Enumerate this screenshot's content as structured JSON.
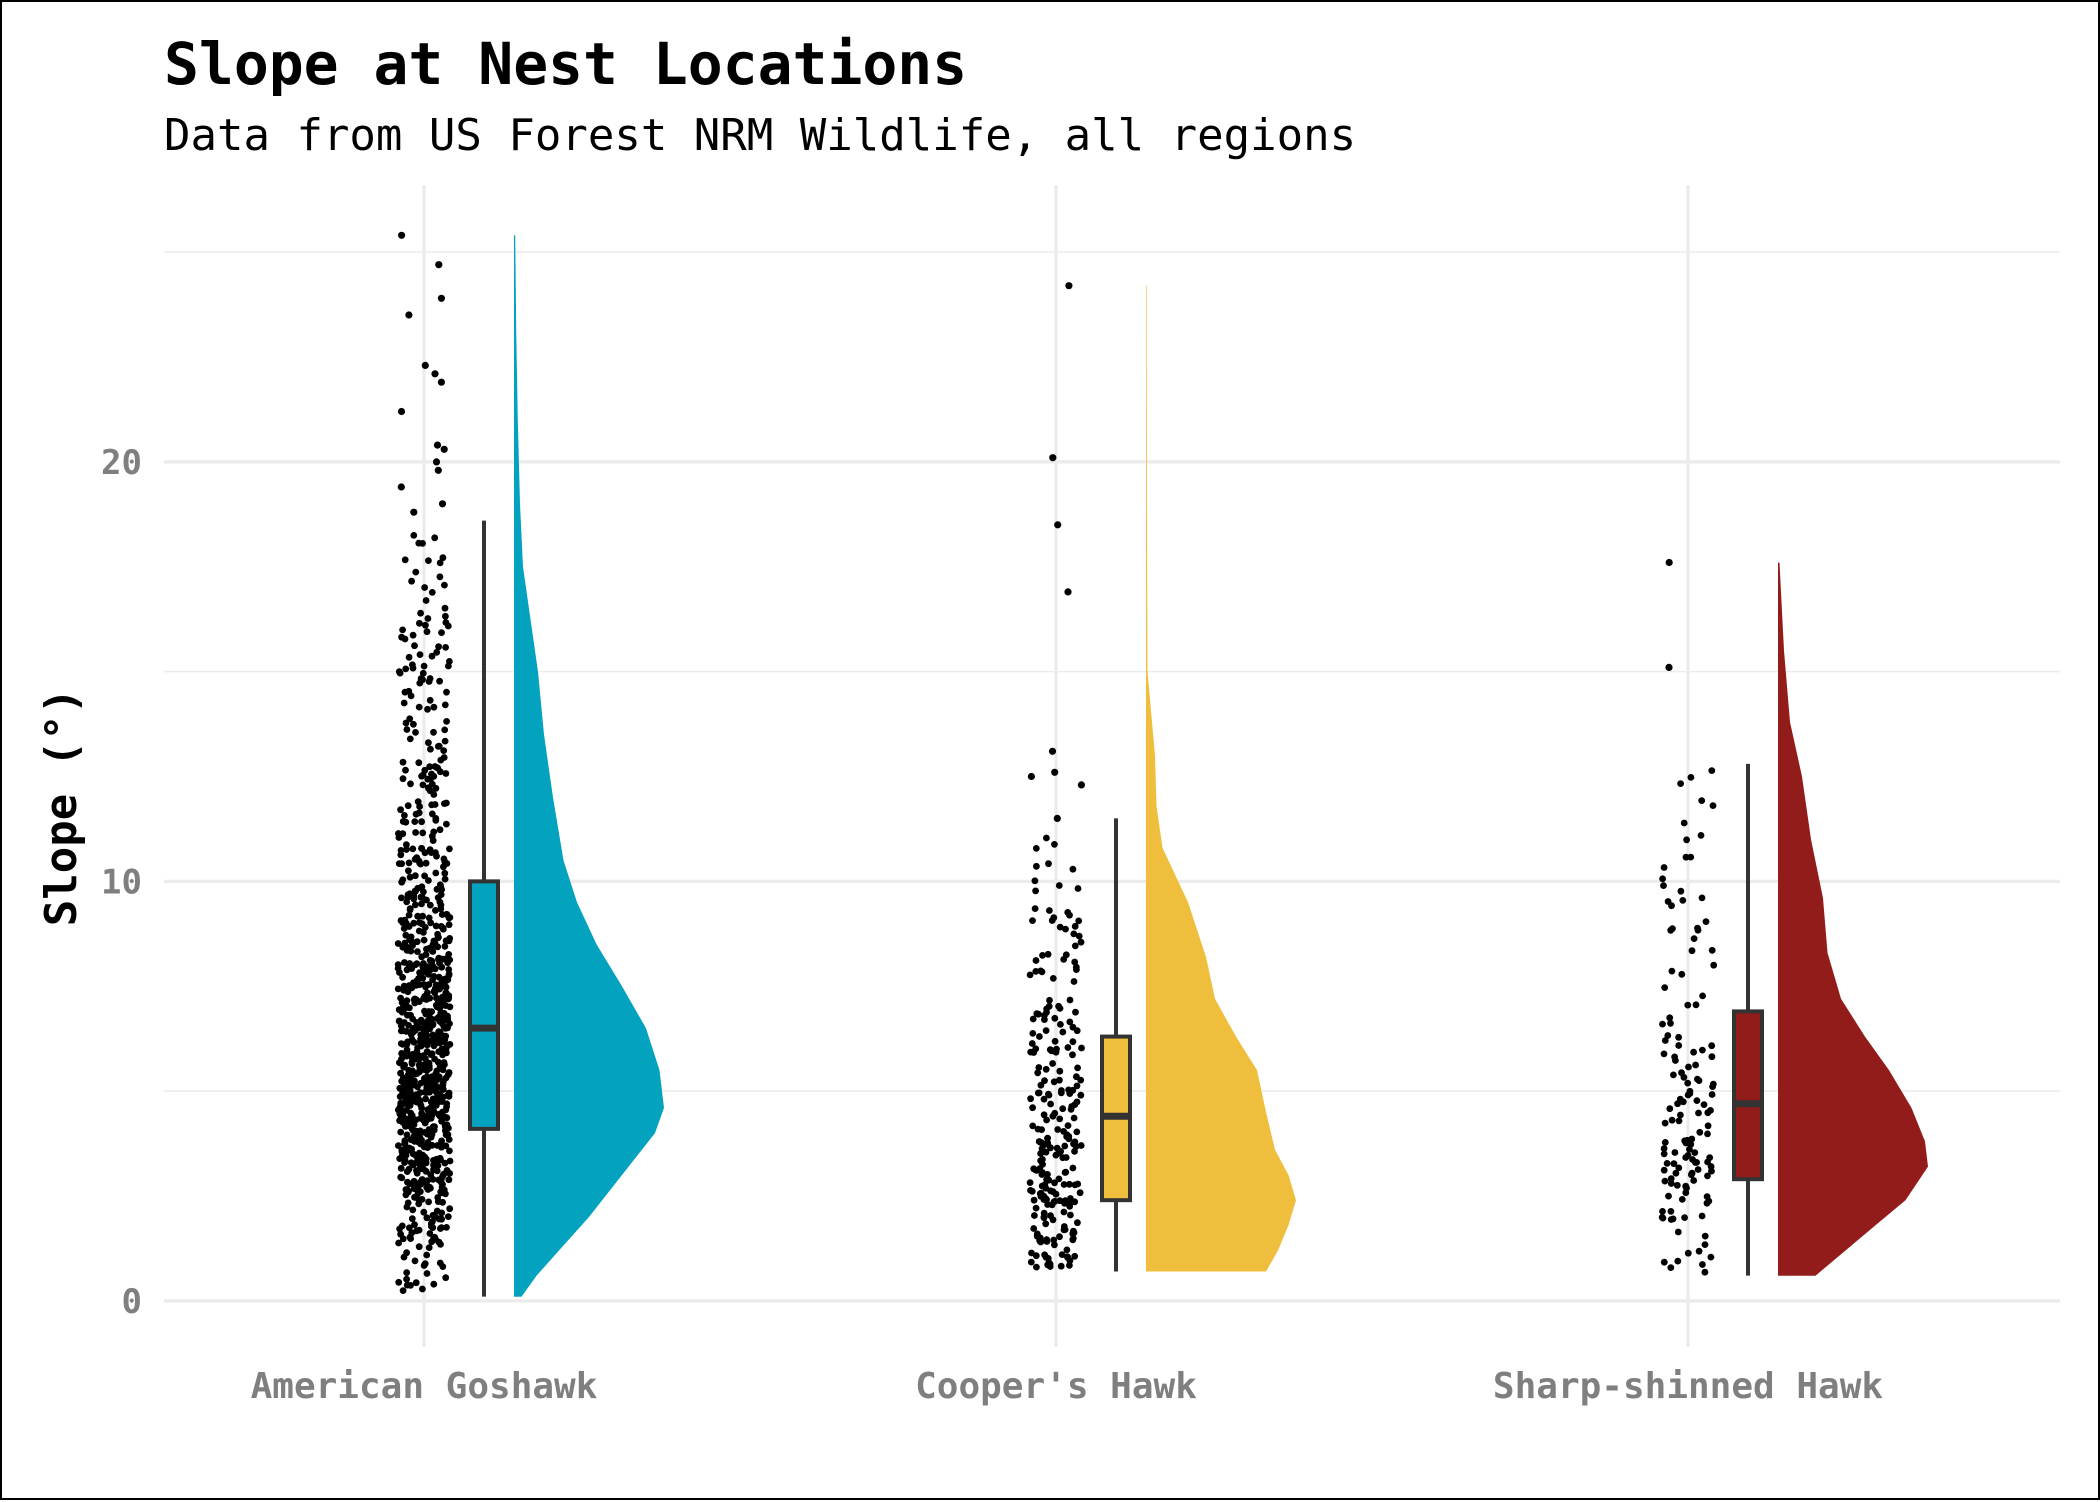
{
  "chart_data": {
    "type": "raincloud",
    "title": "Slope at Nest Locations",
    "subtitle": "Data from US Forest NRM Wildlife, all regions",
    "xlabel": "",
    "ylabel": "Slope (°)",
    "ylim": [
      -1.1,
      26.6
    ],
    "y_ticks": [
      0,
      10,
      20
    ],
    "grid": true,
    "legend": "none",
    "categories": [
      "American Goshawk",
      "Cooper's Hawk",
      "Sharp-shinned Hawk"
    ],
    "series": [
      {
        "category": "American Goshawk",
        "color": "#03A3BF",
        "n_points": 900,
        "min": 0.1,
        "max": 25.4,
        "box": {
          "lower_whisker": 0.1,
          "q1": 4.1,
          "median": 6.5,
          "q3": 10.0,
          "upper_whisker": 18.6
        },
        "outliers": [
          25.4,
          24.7,
          23.9,
          23.5,
          22.3,
          22.1,
          21.9,
          21.2,
          20.4,
          20.3,
          20.0,
          19.8,
          19.4,
          19.0,
          18.8
        ],
        "density": [
          {
            "y": 0.1,
            "d": 0.05
          },
          {
            "y": 0.6,
            "d": 0.15
          },
          {
            "y": 1.2,
            "d": 0.3
          },
          {
            "y": 2.0,
            "d": 0.5
          },
          {
            "y": 3.0,
            "d": 0.72
          },
          {
            "y": 4.0,
            "d": 0.94
          },
          {
            "y": 4.6,
            "d": 1.0
          },
          {
            "y": 5.5,
            "d": 0.97
          },
          {
            "y": 6.5,
            "d": 0.88
          },
          {
            "y": 7.5,
            "d": 0.72
          },
          {
            "y": 8.5,
            "d": 0.55
          },
          {
            "y": 9.5,
            "d": 0.42
          },
          {
            "y": 10.5,
            "d": 0.33
          },
          {
            "y": 12.0,
            "d": 0.26
          },
          {
            "y": 13.5,
            "d": 0.2
          },
          {
            "y": 15.0,
            "d": 0.16
          },
          {
            "y": 16.5,
            "d": 0.1
          },
          {
            "y": 17.5,
            "d": 0.06
          },
          {
            "y": 19.0,
            "d": 0.04
          },
          {
            "y": 21.0,
            "d": 0.025
          },
          {
            "y": 23.0,
            "d": 0.015
          },
          {
            "y": 25.4,
            "d": 0.008
          }
        ]
      },
      {
        "category": "Cooper's Hawk",
        "color": "#EFBE3C",
        "n_points": 260,
        "min": 0.7,
        "max": 24.2,
        "box": {
          "lower_whisker": 0.7,
          "q1": 2.4,
          "median": 4.4,
          "q3": 6.3,
          "upper_whisker": 11.5
        },
        "outliers": [
          24.2,
          20.1,
          18.5,
          16.9,
          13.1,
          12.6,
          12.5,
          12.3,
          11.5
        ],
        "density": [
          {
            "y": 0.7,
            "d": 0.8
          },
          {
            "y": 1.2,
            "d": 0.88
          },
          {
            "y": 1.8,
            "d": 0.95
          },
          {
            "y": 2.4,
            "d": 1.0
          },
          {
            "y": 3.0,
            "d": 0.95
          },
          {
            "y": 3.6,
            "d": 0.86
          },
          {
            "y": 4.5,
            "d": 0.8
          },
          {
            "y": 5.5,
            "d": 0.74
          },
          {
            "y": 6.3,
            "d": 0.6
          },
          {
            "y": 7.2,
            "d": 0.46
          },
          {
            "y": 8.2,
            "d": 0.4
          },
          {
            "y": 9.5,
            "d": 0.28
          },
          {
            "y": 10.8,
            "d": 0.11
          },
          {
            "y": 11.8,
            "d": 0.07
          },
          {
            "y": 13.0,
            "d": 0.06
          },
          {
            "y": 15.0,
            "d": 0.01
          },
          {
            "y": 19.0,
            "d": 0.006
          },
          {
            "y": 24.2,
            "d": 0.004
          }
        ]
      },
      {
        "category": "Sharp-shinned Hawk",
        "color": "#921C19",
        "n_points": 140,
        "min": 0.6,
        "max": 17.6,
        "box": {
          "lower_whisker": 0.6,
          "q1": 2.9,
          "median": 4.7,
          "q3": 6.9,
          "upper_whisker": 12.8
        },
        "outliers": [
          17.6,
          15.1
        ],
        "density": [
          {
            "y": 0.6,
            "d": 0.25
          },
          {
            "y": 1.2,
            "d": 0.45
          },
          {
            "y": 1.8,
            "d": 0.65
          },
          {
            "y": 2.4,
            "d": 0.85
          },
          {
            "y": 3.2,
            "d": 1.0
          },
          {
            "y": 3.8,
            "d": 0.98
          },
          {
            "y": 4.6,
            "d": 0.89
          },
          {
            "y": 5.5,
            "d": 0.74
          },
          {
            "y": 6.3,
            "d": 0.58
          },
          {
            "y": 7.2,
            "d": 0.42
          },
          {
            "y": 8.3,
            "d": 0.33
          },
          {
            "y": 9.6,
            "d": 0.3
          },
          {
            "y": 11.0,
            "d": 0.22
          },
          {
            "y": 12.5,
            "d": 0.16
          },
          {
            "y": 13.8,
            "d": 0.08
          },
          {
            "y": 15.5,
            "d": 0.04
          },
          {
            "y": 17.6,
            "d": 0.01
          }
        ]
      }
    ]
  }
}
